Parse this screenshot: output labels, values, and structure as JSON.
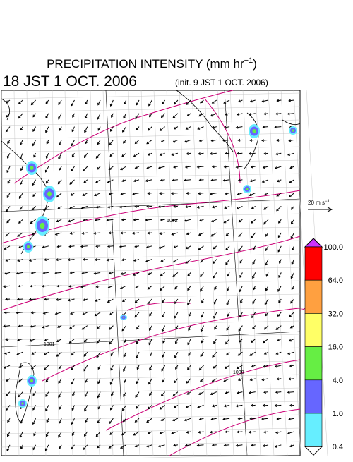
{
  "header": {
    "title": "PRECIPITATION INTENSITY (mm hr",
    "title_exp": "−1",
    "title_end": ")",
    "valid_time": "18 JST 1 OCT. 2006",
    "init_time": "(init. 9 JST 1 OCT. 2006)"
  },
  "wind_scale": {
    "label": "20 m s",
    "exp": "−1"
  },
  "isobar_labels": [
    "1002",
    "1001",
    "1000"
  ],
  "colorbar": {
    "labels": [
      "100.0",
      "64.0",
      "32.0",
      "16.0",
      "4.0",
      "1.0",
      "0.4"
    ],
    "colors": [
      "#ff0000",
      "#ffa040",
      "#ffff66",
      "#66ee44",
      "#6666ff",
      "#66eeff"
    ],
    "over_color": "#cc33ff",
    "under_color": "#ffffff"
  }
}
